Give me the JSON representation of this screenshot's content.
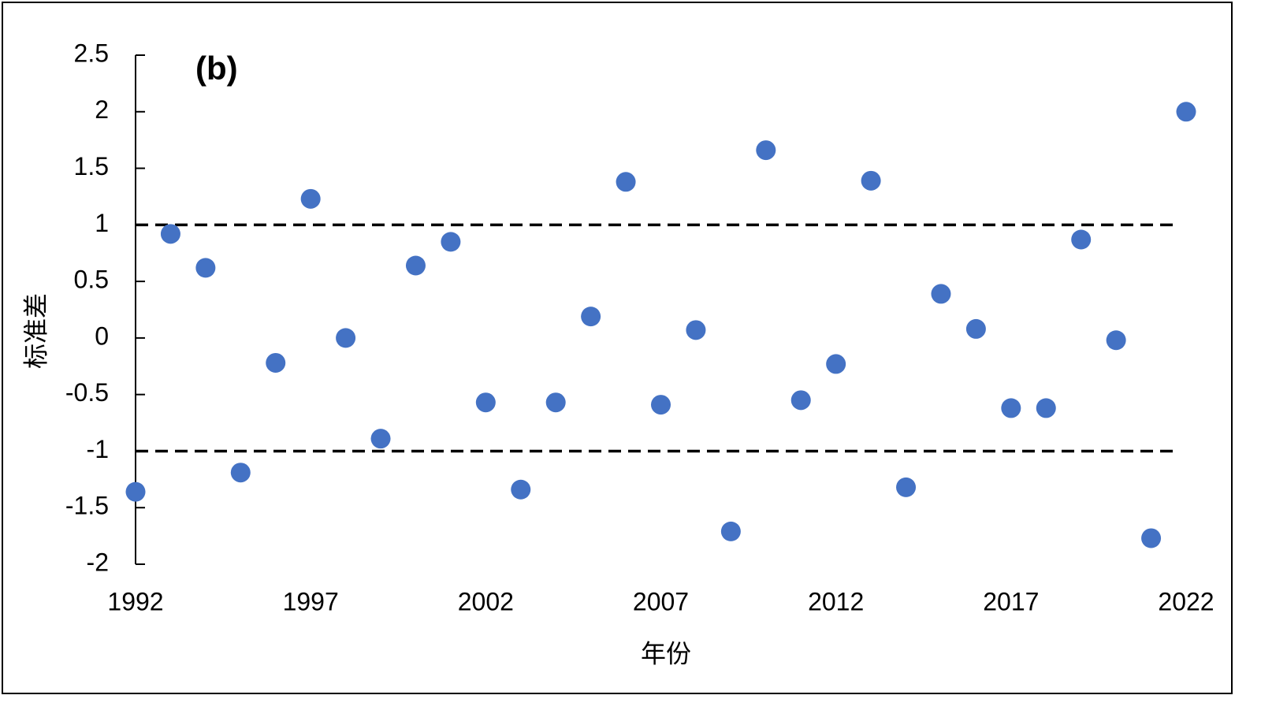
{
  "chart_data": {
    "type": "scatter",
    "annotation": "(b)",
    "x_label": "年份",
    "y_label": "标准差",
    "x": [
      1992,
      1993,
      1994,
      1995,
      1996,
      1997,
      1998,
      1999,
      2000,
      2001,
      2002,
      2003,
      2004,
      2005,
      2006,
      2007,
      2008,
      2009,
      2010,
      2011,
      2012,
      2013,
      2014,
      2015,
      2016,
      2017,
      2018,
      2019,
      2020,
      2021,
      2022
    ],
    "series": [
      {
        "color": "#4472c4",
        "values": [
          -1.36,
          0.92,
          0.62,
          -1.19,
          -0.22,
          1.23,
          0.0,
          -0.89,
          0.64,
          0.85,
          -0.57,
          -1.34,
          -0.57,
          0.19,
          1.38,
          -0.59,
          0.07,
          -1.71,
          1.66,
          -0.55,
          -0.23,
          1.39,
          -1.32,
          0.39,
          0.08,
          -0.62,
          -0.62,
          0.87,
          -0.02,
          -1.77,
          2.0
        ]
      }
    ],
    "xlim": [
      1992,
      2022
    ],
    "xticks": [
      1992,
      1997,
      2002,
      2007,
      2012,
      2017,
      2022
    ],
    "ylim": [
      -2,
      2.5
    ],
    "yticks": [
      2.5,
      2,
      1.5,
      1,
      0.5,
      0,
      -0.5,
      -1,
      -1.5,
      -2
    ],
    "reference_lines": [
      1,
      -1
    ]
  }
}
